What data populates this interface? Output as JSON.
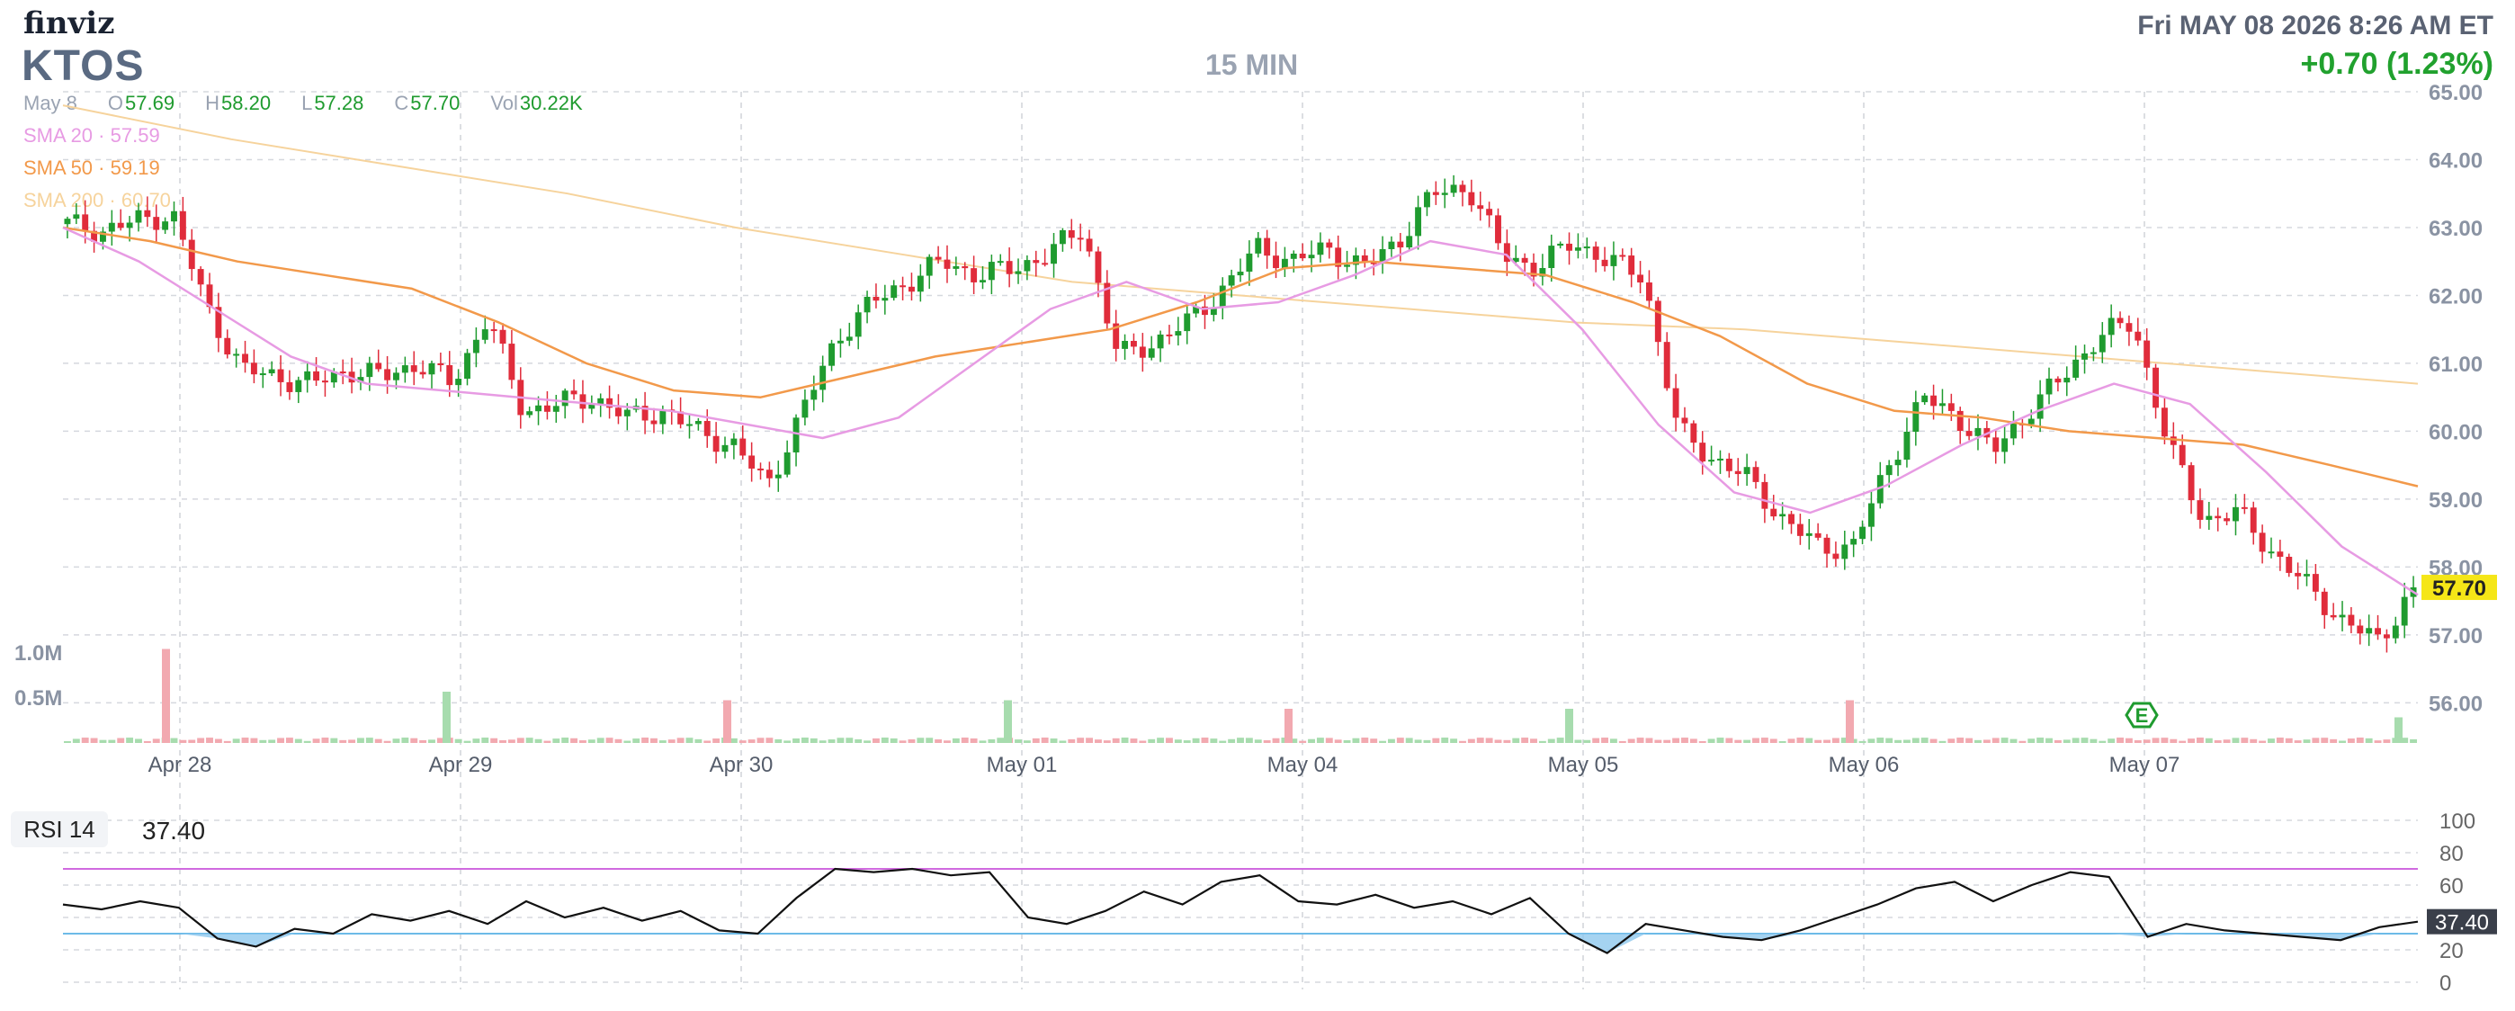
{
  "header": {
    "logo": "finviz",
    "ticker": "KTOS",
    "timeframe": "15 MIN",
    "datetime": "Fri MAY 08 2026 8:26 AM ET",
    "change": "+0.70 (1.23%)"
  },
  "ohlc": {
    "date": "May 8",
    "open_label": "O",
    "open": "57.69",
    "high_label": "H",
    "high": "58.20",
    "low_label": "L",
    "low": "57.28",
    "close_label": "C",
    "close": "57.70",
    "vol_label": "Vol",
    "vol": "30.22K"
  },
  "indicators": {
    "sma20": {
      "label": "SMA 20",
      "sep": "·",
      "value": "57.59",
      "color": "#e79be3"
    },
    "sma50": {
      "label": "SMA 50",
      "sep": "·",
      "value": "59.19",
      "color": "#f2994a"
    },
    "sma200": {
      "label": "SMA 200",
      "sep": "·",
      "value": "60.70",
      "color": "#f6d39c"
    }
  },
  "rsi": {
    "label": "RSI 14",
    "value": "37.40",
    "badge": "37.40"
  },
  "earnings_marker": "E",
  "colors": {
    "up": "#1f9b2f",
    "down": "#e02c3b",
    "rsi_line": "#111111",
    "overbought": "#d06adf",
    "oversold": "#6dbbe8",
    "price_tag": "#f5e617"
  },
  "chart_data": {
    "type": "candlestick",
    "price_axis": {
      "ticks": [
        "65.00",
        "64.00",
        "63.00",
        "62.00",
        "61.00",
        "60.00",
        "59.00",
        "58.00",
        "57.00",
        "56.00"
      ],
      "ylim": [
        55.7,
        65.0
      ]
    },
    "volume_axis": {
      "ticks": [
        "1.0M",
        "0.5M"
      ]
    },
    "x_axis": {
      "tick_labels": [
        "Apr 28",
        "Apr 29",
        "Apr 30",
        "May 01",
        "May 04",
        "May 05",
        "May 06",
        "May 07"
      ]
    },
    "last_price": "57.70",
    "close_path": [
      63.05,
      62.95,
      63.1,
      63.2,
      61.8,
      60.9,
      60.8,
      60.7,
      60.9,
      60.8,
      61.0,
      60.7,
      61.7,
      60.3,
      60.4,
      60.5,
      60.2,
      60.3,
      60.0,
      59.8,
      59.2,
      60.3,
      61.4,
      61.9,
      62.2,
      62.5,
      62.3,
      62.4,
      62.6,
      63.0,
      61.1,
      61.3,
      61.6,
      62.1,
      62.7,
      62.5,
      62.7,
      62.4,
      62.8,
      63.5,
      63.6,
      62.6,
      62.4,
      62.8,
      62.5,
      62.3,
      60.0,
      59.6,
      59.3,
      58.7,
      58.3,
      58.3,
      59.5,
      60.5,
      60.2,
      59.7,
      60.3,
      60.8,
      61.4,
      61.6,
      59.8,
      58.7,
      58.8,
      58.2,
      57.7,
      57.2,
      56.9,
      57.7
    ],
    "close_path_x_range": [
      "Apr 27",
      "May 08"
    ],
    "volume_spikes": [
      {
        "x": "Apr 28",
        "value": 1.1
      },
      {
        "x": "Apr 29",
        "value": 0.6
      },
      {
        "x": "Apr 30",
        "value": 0.5
      },
      {
        "x": "May 01",
        "value": 0.5
      },
      {
        "x": "May 04",
        "value": 0.4
      },
      {
        "x": "May 05",
        "value": 0.4
      },
      {
        "x": "May 06",
        "value": 0.5
      },
      {
        "x": "May 08",
        "value": 0.3
      }
    ],
    "volume_unit": "M",
    "sma20_path": [
      63.0,
      62.5,
      61.8,
      61.1,
      60.7,
      60.6,
      60.5,
      60.4,
      60.3,
      60.1,
      59.9,
      60.2,
      61.0,
      61.8,
      62.2,
      61.8,
      61.9,
      62.3,
      62.8,
      62.6,
      61.5,
      60.1,
      59.1,
      58.8,
      59.2,
      59.8,
      60.3,
      60.7,
      60.4,
      59.4,
      58.3,
      57.59
    ],
    "sma50_path": [
      63.0,
      62.8,
      62.5,
      62.3,
      62.1,
      61.6,
      61.0,
      60.6,
      60.5,
      60.8,
      61.1,
      61.3,
      61.5,
      61.9,
      62.4,
      62.5,
      62.4,
      62.3,
      61.9,
      61.4,
      60.7,
      60.3,
      60.2,
      60.0,
      59.9,
      59.8,
      59.5,
      59.19
    ],
    "sma200_path": [
      64.8,
      64.3,
      63.9,
      63.5,
      63.0,
      62.6,
      62.2,
      62.0,
      61.8,
      61.6,
      61.5,
      61.3,
      61.1,
      60.9,
      60.7
    ],
    "rsi_axis": {
      "ticks": [
        "100",
        "80",
        "60",
        "40",
        "20",
        "0"
      ],
      "overbought": 70,
      "oversold": 30
    },
    "rsi_path": [
      48,
      45,
      50,
      46,
      27,
      22,
      33,
      30,
      42,
      38,
      44,
      36,
      50,
      40,
      46,
      38,
      44,
      32,
      30,
      52,
      70,
      68,
      70,
      66,
      68,
      40,
      36,
      44,
      56,
      48,
      62,
      66,
      50,
      48,
      54,
      46,
      50,
      42,
      52,
      30,
      18,
      36,
      32,
      28,
      26,
      32,
      40,
      48,
      58,
      62,
      50,
      60,
      68,
      65,
      28,
      36,
      32,
      30,
      28,
      26,
      34,
      37.4
    ]
  }
}
